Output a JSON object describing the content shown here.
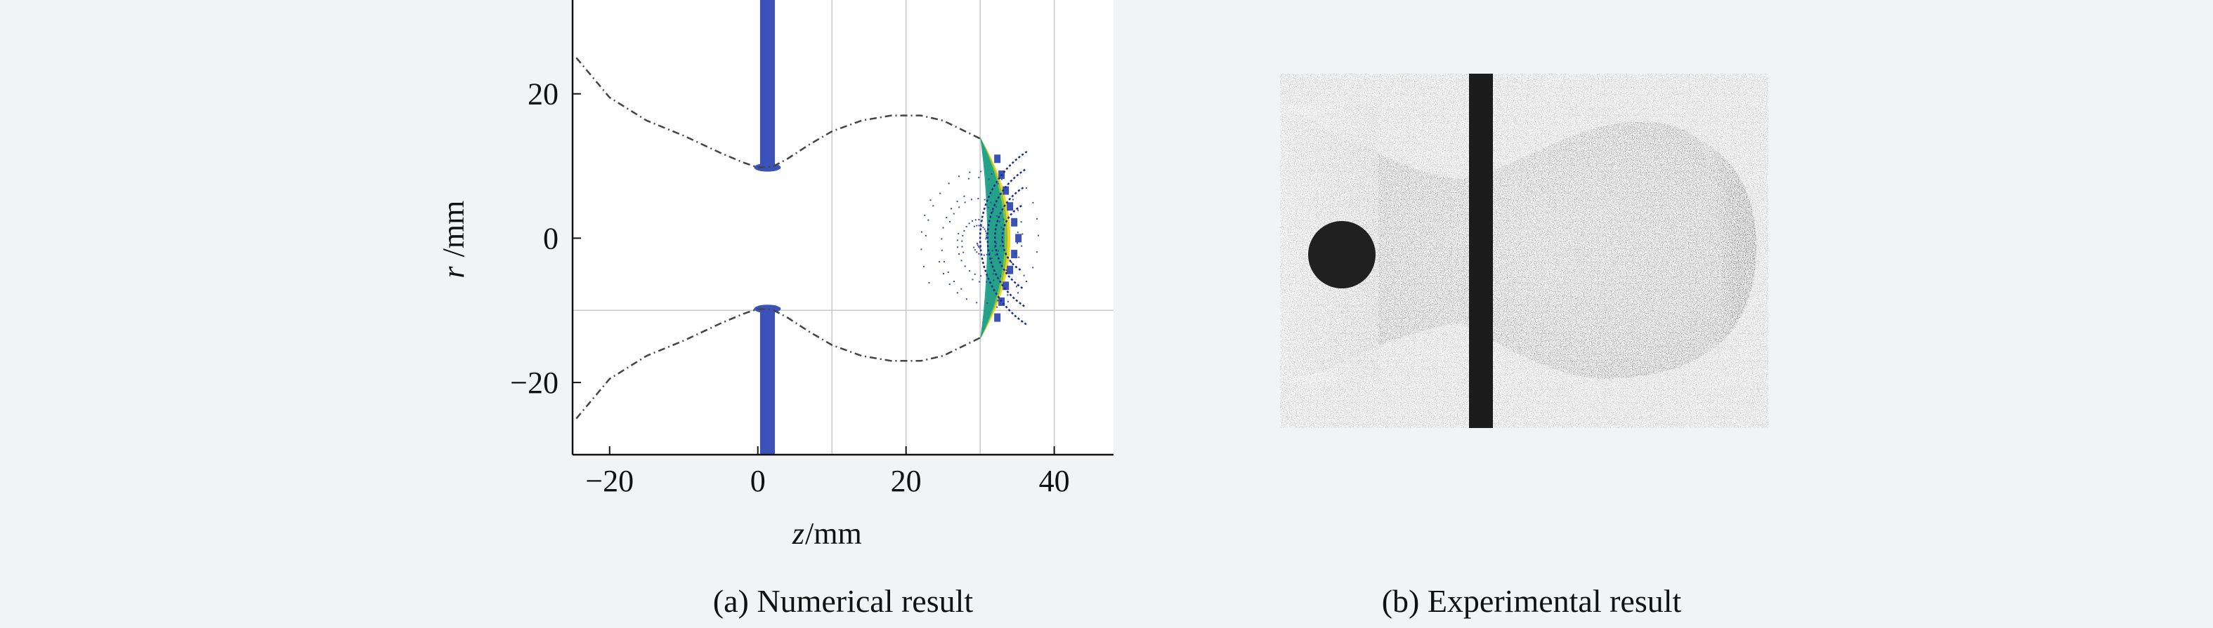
{
  "chart_data": [
    {
      "type": "scatter",
      "panel_label": "(a) Numerical result",
      "xlabel_var": "z",
      "xlabel_unit": "/mm",
      "ylabel_var": "r",
      "ylabel_unit": "/mm",
      "xlim": [
        -25,
        48
      ],
      "ylim": [
        -30,
        33
      ],
      "xticks": [
        -20,
        0,
        20,
        40
      ],
      "yticks": [
        -20,
        0,
        20
      ],
      "xtick_labels": [
        "−20",
        "0",
        "20",
        "40"
      ],
      "ytick_labels": [
        "−20",
        "0",
        "20"
      ],
      "grid_x": [
        10,
        20,
        30,
        40
      ],
      "grid_y": [
        -10
      ],
      "rod": {
        "z_center": 1.3,
        "half_width": 1.0,
        "color": "#3b53b8"
      },
      "bubble_upper": [
        {
          "z": -24.5,
          "r": 25
        },
        {
          "z": -20,
          "r": 19.5
        },
        {
          "z": -15,
          "r": 16.3
        },
        {
          "z": -10,
          "r": 14.2
        },
        {
          "z": -5,
          "r": 11.8
        },
        {
          "z": -2,
          "r": 10.5
        },
        {
          "z": 0,
          "r": 9.8
        },
        {
          "z": 2,
          "r": 9.9
        },
        {
          "z": 4,
          "r": 11.0
        },
        {
          "z": 7,
          "r": 13.0
        },
        {
          "z": 10,
          "r": 14.8
        },
        {
          "z": 14,
          "r": 16.3
        },
        {
          "z": 18,
          "r": 17.0
        },
        {
          "z": 22,
          "r": 17.0
        },
        {
          "z": 25,
          "r": 16.3
        },
        {
          "z": 28,
          "r": 14.8
        },
        {
          "z": 30,
          "r": 13.8
        }
      ],
      "bubble_lower": [
        {
          "z": -24.5,
          "r": -25
        },
        {
          "z": -20,
          "r": -19.5
        },
        {
          "z": -15,
          "r": -16.3
        },
        {
          "z": -10,
          "r": -14.2
        },
        {
          "z": -5,
          "r": -11.8
        },
        {
          "z": -2,
          "r": -10.5
        },
        {
          "z": 0,
          "r": -9.8
        },
        {
          "z": 2,
          "r": -9.9
        },
        {
          "z": 4,
          "r": -11.0
        },
        {
          "z": 7,
          "r": -13.0
        },
        {
          "z": 10,
          "r": -14.8
        },
        {
          "z": 14,
          "r": -16.3
        },
        {
          "z": 18,
          "r": -17.0
        },
        {
          "z": 22,
          "r": -17.0
        },
        {
          "z": 25,
          "r": -16.3
        },
        {
          "z": 28,
          "r": -14.8
        },
        {
          "z": 30,
          "r": -13.8
        }
      ],
      "front": {
        "z_back": 30,
        "z_front": 35.5,
        "half_height": 14,
        "colors": [
          "#f2d21a",
          "#7cc242",
          "#1f9f8c"
        ]
      },
      "inner_arcs": [
        {
          "center_z": 38,
          "radius": 5,
          "span_r": 4.5
        },
        {
          "center_z": 40,
          "radius": 8,
          "span_r": 7
        },
        {
          "center_z": 42,
          "radius": 11,
          "span_r": 9.5
        },
        {
          "center_z": 44,
          "radius": 14,
          "span_r": 12
        }
      ]
    },
    {
      "type": "image",
      "panel_label": "(b) Experimental result"
    }
  ]
}
